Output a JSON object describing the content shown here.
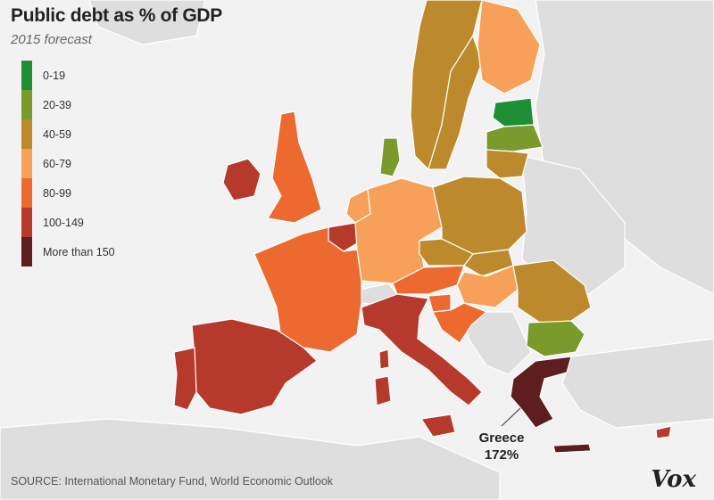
{
  "header": {
    "title": "Public debt as % of GDP",
    "subtitle": "2015 forecast"
  },
  "legend": [
    {
      "label": "0-19",
      "color": "#1f8f35"
    },
    {
      "label": "20-39",
      "color": "#7a9a2c"
    },
    {
      "label": "40-59",
      "color": "#bc8a2c"
    },
    {
      "label": "60-79",
      "color": "#f7a05a"
    },
    {
      "label": "80-99",
      "color": "#ec6a2f"
    },
    {
      "label": "100-149",
      "color": "#b63a2c"
    },
    {
      "label": "More than 150",
      "color": "#5e1d1f"
    }
  ],
  "map_data": {
    "countries": [
      {
        "name": "Norway",
        "bin": "40-59"
      },
      {
        "name": "Sweden",
        "bin": "40-59"
      },
      {
        "name": "Finland",
        "bin": "60-79"
      },
      {
        "name": "Estonia",
        "bin": "0-19"
      },
      {
        "name": "Latvia",
        "bin": "20-39"
      },
      {
        "name": "Lithuania",
        "bin": "40-59"
      },
      {
        "name": "Denmark",
        "bin": "20-39"
      },
      {
        "name": "Ireland",
        "bin": "100-149"
      },
      {
        "name": "United Kingdom",
        "bin": "80-99"
      },
      {
        "name": "Netherlands",
        "bin": "60-79"
      },
      {
        "name": "Belgium",
        "bin": "100-149"
      },
      {
        "name": "Germany",
        "bin": "60-79"
      },
      {
        "name": "Poland",
        "bin": "40-59"
      },
      {
        "name": "Czech Republic",
        "bin": "40-59"
      },
      {
        "name": "Slovakia",
        "bin": "40-59"
      },
      {
        "name": "Hungary",
        "bin": "60-79"
      },
      {
        "name": "Austria",
        "bin": "80-99"
      },
      {
        "name": "France",
        "bin": "80-99"
      },
      {
        "name": "Spain",
        "bin": "100-149"
      },
      {
        "name": "Portugal",
        "bin": "100-149"
      },
      {
        "name": "Italy",
        "bin": "100-149"
      },
      {
        "name": "Slovenia",
        "bin": "80-99"
      },
      {
        "name": "Croatia",
        "bin": "80-99"
      },
      {
        "name": "Romania",
        "bin": "40-59"
      },
      {
        "name": "Bulgaria",
        "bin": "20-39"
      },
      {
        "name": "Greece",
        "bin": "More than 150"
      },
      {
        "name": "Cyprus",
        "bin": "100-149"
      }
    ],
    "callout": {
      "country": "Greece",
      "name": "Greece",
      "value": "172%"
    }
  },
  "footer": {
    "source": "SOURCE: International Monetary Fund, World Economic Outlook",
    "logo": "Vox"
  }
}
